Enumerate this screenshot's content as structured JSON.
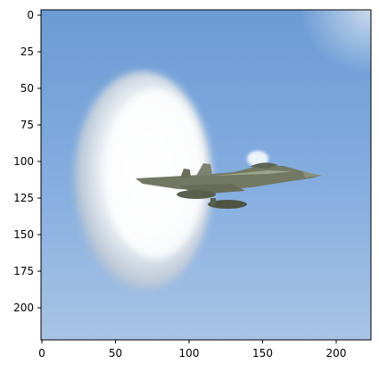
{
  "image": {
    "description_subject": "fighter-jet-vapor-cone",
    "x_range": [
      0,
      224
    ],
    "y_range": [
      0,
      224
    ],
    "colors": {
      "sky_top": "#6f9fd6",
      "sky_bottom": "#a9c5e6",
      "cloud_core": "#ffffff",
      "cloud_edge": "#c9d3de",
      "jet_body": "#6f7463"
    }
  },
  "axes": {
    "x_ticks": [
      "0",
      "50",
      "100",
      "150",
      "200"
    ],
    "y_ticks": [
      "0",
      "25",
      "50",
      "75",
      "100",
      "125",
      "150",
      "175",
      "200"
    ]
  }
}
